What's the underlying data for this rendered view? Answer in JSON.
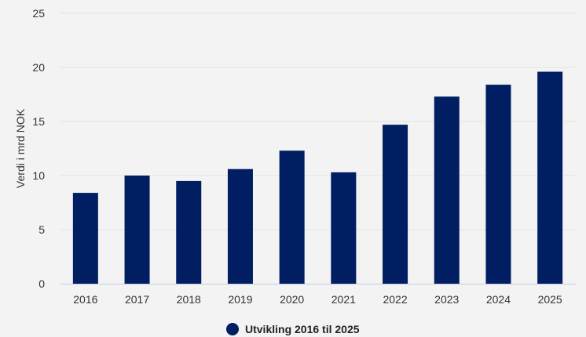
{
  "colors": {
    "bar": "#001e61",
    "grid": "#e3e4e3",
    "axis": "#c9cbe6",
    "background": "#f2f3f2"
  },
  "chart_data": {
    "type": "bar",
    "categories": [
      "2016",
      "2017",
      "2018",
      "2019",
      "2020",
      "2021",
      "2022",
      "2023",
      "2024",
      "2025"
    ],
    "series": [
      {
        "name": "Utvikling 2016 til 2025",
        "values": [
          8.4,
          10.0,
          9.5,
          10.6,
          12.3,
          10.3,
          14.7,
          17.3,
          18.4,
          19.6
        ]
      }
    ],
    "ylabel": "Verdi i mrd NOK",
    "xlabel": "",
    "ylim": [
      0,
      25
    ],
    "yticks": [
      0,
      5,
      10,
      15,
      20,
      25
    ],
    "grid": true,
    "legend": "bottom"
  }
}
